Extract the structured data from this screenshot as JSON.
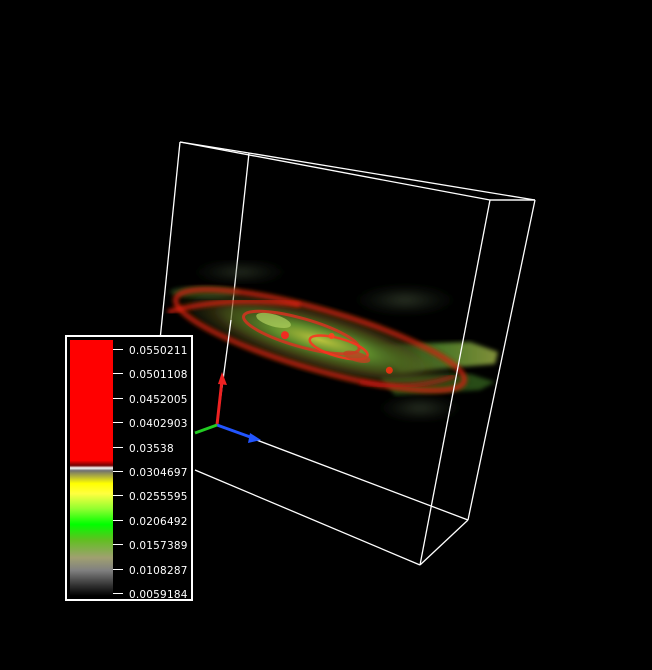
{
  "scene": {
    "background": "#000000",
    "bounding_box_color": "#ffffff",
    "axes": {
      "x_color": "#22cc22",
      "y_color": "#ee2222",
      "z_color": "#2255ff"
    }
  },
  "colorbar": {
    "labels": [
      "0.0550211",
      "0.0501108",
      "0.0452005",
      "0.0402903",
      "0.03538",
      "0.0304697",
      "0.0255595",
      "0.0206492",
      "0.0157389",
      "0.0108287",
      "0.0059184"
    ],
    "colors": {
      "high": "#ff0000",
      "mid": "#00ff00",
      "upper_mid": "#ffff00",
      "low": "#000000"
    }
  }
}
